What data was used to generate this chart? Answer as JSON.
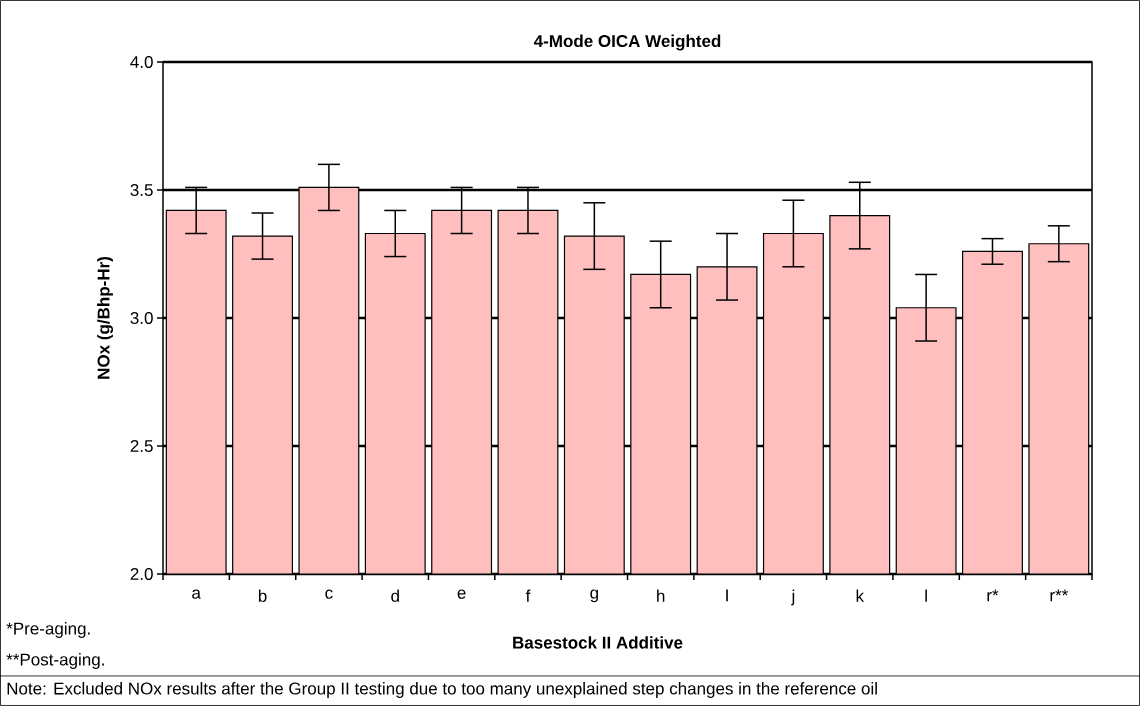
{
  "chart_data": {
    "type": "bar",
    "title": "4-Mode OICA Weighted",
    "xlabel": "Basestock II Additive",
    "ylabel": "NOx (g/Bhp-Hr)",
    "categories": [
      "a",
      "b",
      "c",
      "d",
      "e",
      "f",
      "g",
      "h",
      "I",
      "j",
      "k",
      "l",
      "r*",
      "r**"
    ],
    "values": [
      3.42,
      3.32,
      3.51,
      3.33,
      3.42,
      3.42,
      3.32,
      3.17,
      3.2,
      3.33,
      3.4,
      3.04,
      3.26,
      3.29
    ],
    "errors": [
      0.09,
      0.09,
      0.09,
      0.09,
      0.09,
      0.09,
      0.13,
      0.13,
      0.13,
      0.13,
      0.13,
      0.13,
      0.05,
      0.07
    ],
    "color": "#ffbfbf",
    "ylim": [
      2.0,
      4.0
    ],
    "yticks": [
      {
        "value": 2.0,
        "label": "2.0"
      },
      {
        "value": 2.5,
        "label": "2.5"
      },
      {
        "value": 3.0,
        "label": "3.0"
      },
      {
        "value": 3.5,
        "label": "3.5"
      },
      {
        "value": 4.0,
        "label": "4.0"
      }
    ],
    "grid": "y",
    "annotations": [
      "*Pre-aging.",
      "**Post-aging.",
      "Note: Excluded NOx results after the Group II testing due to too many unexplained step changes in the reference oil"
    ]
  }
}
